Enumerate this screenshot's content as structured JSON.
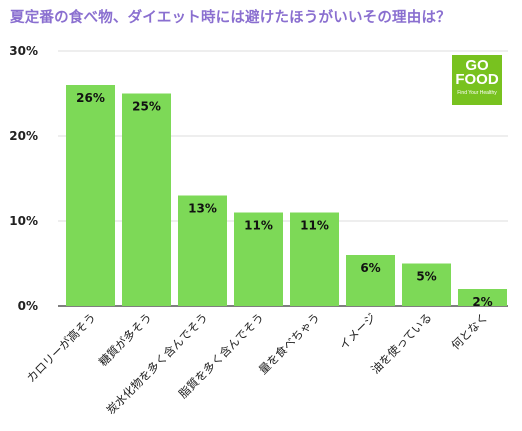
{
  "title": "夏定番の食べ物、ダイエット時には避けたほうがいいその理由は？",
  "logo": {
    "line1": "GO FOOD",
    "line2": "Find Your Healthy"
  },
  "colors": {
    "bar": "#7dd957",
    "title": "#8a6fd0",
    "grid": "#dcdcdc",
    "axis": "#333333",
    "logo": "#78c21f"
  },
  "chart_data": {
    "type": "bar",
    "categories": [
      "カロリーが高そう",
      "糖質が多そう",
      "炭水化物を多く含んでそう",
      "脂質を多く含んでそう",
      "量を食べちゃう",
      "イメージ",
      "油を使っている",
      "何となく"
    ],
    "values": [
      26,
      25,
      13,
      11,
      11,
      6,
      5,
      2
    ],
    "value_labels": [
      "26%",
      "25%",
      "13%",
      "11%",
      "11%",
      "6%",
      "5%",
      "2%"
    ],
    "yticks": [
      "0%",
      "10%",
      "20%",
      "30%"
    ],
    "ylim": [
      0,
      30
    ],
    "grid": true,
    "xlabel": "",
    "ylabel": ""
  }
}
